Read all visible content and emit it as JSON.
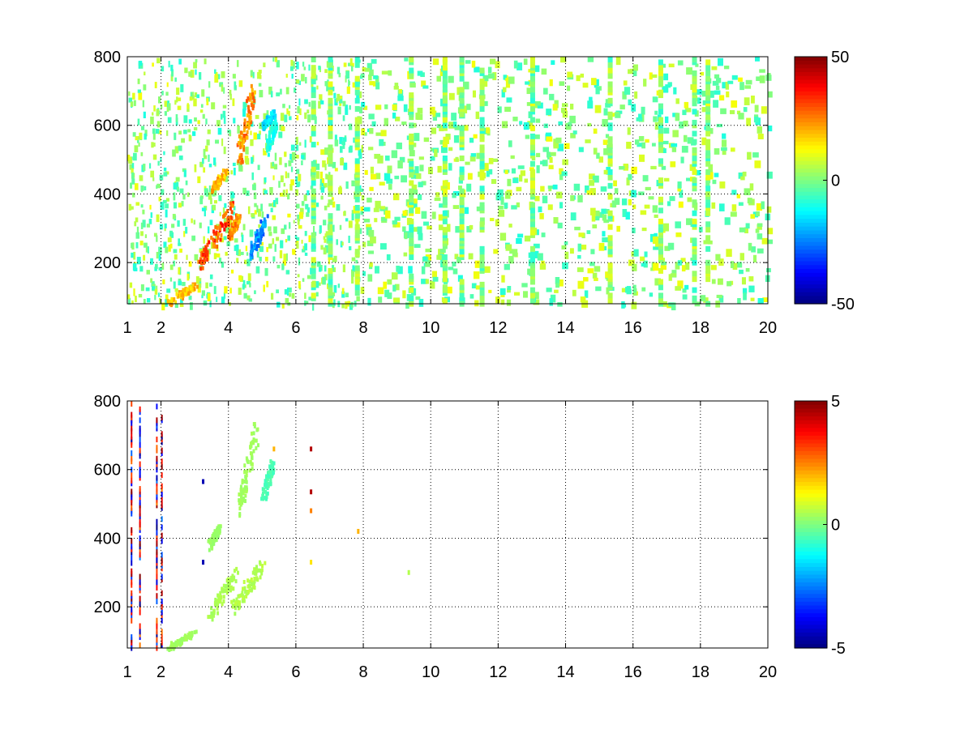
{
  "chart_data": [
    {
      "type": "heatmap",
      "title": "",
      "xlabel": "",
      "ylabel": "",
      "xlim": [
        1,
        20
      ],
      "ylim": [
        80,
        800
      ],
      "grid": true,
      "grid_style": "dotted",
      "colormap": "jet",
      "x_tick_labels": [
        "1",
        "2",
        "4",
        "6",
        "8",
        "10",
        "12",
        "14",
        "16",
        "18",
        "20"
      ],
      "x_tick_values": [
        1,
        2,
        4,
        6,
        8,
        10,
        12,
        14,
        16,
        18,
        20
      ],
      "y_tick_labels": [
        "200",
        "400",
        "600",
        "800"
      ],
      "y_tick_values": [
        200,
        400,
        600,
        800
      ],
      "colorbar": {
        "range": [
          -50,
          50
        ],
        "tick_labels": [
          "50",
          "0",
          "-50"
        ],
        "tick_values": [
          50,
          0,
          -50
        ]
      },
      "features": [
        {
          "x": [
            3.1,
            4.1
          ],
          "y": [
            200,
            360
          ],
          "value": 35
        },
        {
          "x": [
            2.2,
            3.0
          ],
          "y": [
            85,
            140
          ],
          "value": 22
        },
        {
          "x": [
            3.5,
            3.9
          ],
          "y": [
            420,
            470
          ],
          "value": 22
        },
        {
          "x": [
            4.3,
            4.7
          ],
          "y": [
            520,
            700
          ],
          "value": 28
        },
        {
          "x": [
            4.0,
            4.3
          ],
          "y": [
            280,
            340
          ],
          "value": 28
        },
        {
          "x": [
            4.6,
            5.1
          ],
          "y": [
            230,
            330
          ],
          "value": -28
        },
        {
          "x": [
            5.1,
            5.4
          ],
          "y": [
            530,
            620
          ],
          "value": -12
        },
        {
          "x": [
            5.0,
            5.3
          ],
          "y": [
            600,
            640
          ],
          "value": -18
        }
      ],
      "stripe_columns": [
        6.5,
        7.0,
        7.8,
        9.4,
        10.4,
        10.9,
        11.5,
        13.0,
        15.3,
        16.8,
        17.8,
        18.2
      ]
    },
    {
      "type": "heatmap",
      "title": "",
      "xlabel": "",
      "ylabel": "",
      "xlim": [
        1,
        20
      ],
      "ylim": [
        80,
        800
      ],
      "grid": true,
      "grid_style": "dotted",
      "colormap": "jet",
      "x_tick_labels": [
        "1",
        "2",
        "4",
        "6",
        "8",
        "10",
        "12",
        "14",
        "16",
        "18",
        "20"
      ],
      "x_tick_values": [
        1,
        2,
        4,
        6,
        8,
        10,
        12,
        14,
        16,
        18,
        20
      ],
      "y_tick_labels": [
        "200",
        "400",
        "600",
        "800"
      ],
      "y_tick_values": [
        200,
        400,
        600,
        800
      ],
      "colorbar": {
        "range": [
          -5,
          5
        ],
        "tick_labels": [
          "5",
          "0",
          "-5"
        ],
        "tick_values": [
          5,
          0,
          -5
        ]
      },
      "features": [
        {
          "x": [
            3.4,
            4.2
          ],
          "y": [
            180,
            300
          ],
          "value": 0.5
        },
        {
          "x": [
            4.1,
            5.0
          ],
          "y": [
            200,
            330
          ],
          "value": 0.6
        },
        {
          "x": [
            4.3,
            4.8
          ],
          "y": [
            500,
            720
          ],
          "value": 0.4
        },
        {
          "x": [
            5.0,
            5.3
          ],
          "y": [
            530,
            620
          ],
          "value": -0.6
        },
        {
          "x": [
            2.2,
            3.0
          ],
          "y": [
            85,
            130
          ],
          "value": 0.4
        },
        {
          "x": [
            3.4,
            3.7
          ],
          "y": [
            380,
            440
          ],
          "value": 0.3
        }
      ],
      "stripe_columns": [
        1.15,
        1.4,
        1.9,
        2.05
      ],
      "spots": [
        {
          "x": 6.45,
          "y": 660,
          "value": 4.5
        },
        {
          "x": 6.45,
          "y": 535,
          "value": 4.5
        },
        {
          "x": 6.45,
          "y": 480,
          "value": 2.5
        },
        {
          "x": 6.45,
          "y": 330,
          "value": 1.5
        },
        {
          "x": 3.25,
          "y": 565,
          "value": -4.5
        },
        {
          "x": 3.25,
          "y": 330,
          "value": -4.5
        },
        {
          "x": 9.35,
          "y": 300,
          "value": 0.5
        },
        {
          "x": 7.85,
          "y": 420,
          "value": 2
        },
        {
          "x": 5.35,
          "y": 660,
          "value": 2
        }
      ]
    }
  ]
}
